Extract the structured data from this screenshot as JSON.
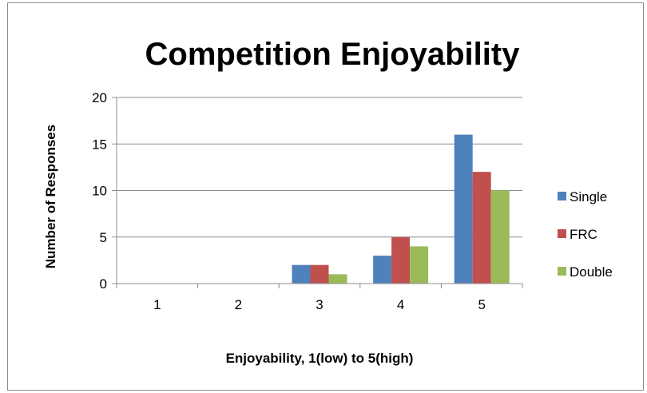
{
  "chart_data": {
    "type": "bar",
    "title": "Competition Enjoyability",
    "xlabel": "Enjoyability, 1(low) to 5(high)",
    "ylabel": "Number of Responses",
    "categories": [
      "1",
      "2",
      "3",
      "4",
      "5"
    ],
    "series": [
      {
        "name": "Single",
        "values": [
          0,
          0,
          2,
          3,
          16
        ],
        "color": "#4f81bd"
      },
      {
        "name": "FRC",
        "values": [
          0,
          0,
          2,
          5,
          12
        ],
        "color": "#c0504d"
      },
      {
        "name": "Double",
        "values": [
          0,
          0,
          1,
          4,
          10
        ],
        "color": "#9bbb59"
      }
    ],
    "ylim": [
      0,
      20
    ],
    "yticks": [
      0,
      5,
      10,
      15,
      20
    ],
    "grid": true,
    "legend": "right"
  }
}
